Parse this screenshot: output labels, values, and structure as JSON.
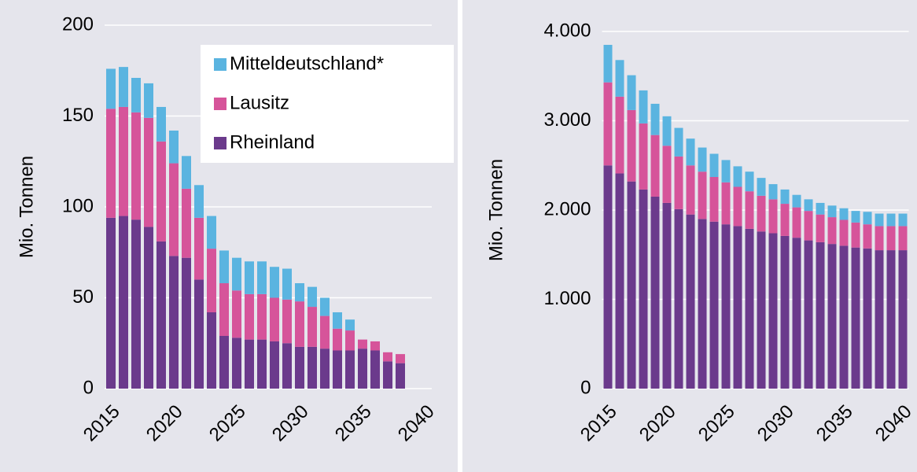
{
  "chart_data": [
    {
      "type": "bar",
      "stacked": true,
      "ylabel": "Mio. Tonnen",
      "x": [
        2015,
        2016,
        2017,
        2018,
        2019,
        2020,
        2021,
        2022,
        2023,
        2024,
        2025,
        2026,
        2027,
        2028,
        2029,
        2030,
        2031,
        2032,
        2033,
        2034,
        2035,
        2036,
        2037,
        2038
      ],
      "series": [
        {
          "name": "Rheinland",
          "color": "#6b3a8c",
          "values": [
            94,
            95,
            93,
            89,
            81,
            73,
            72,
            60,
            42,
            29,
            28,
            27,
            27,
            26,
            25,
            23,
            23,
            22,
            21,
            21,
            22,
            21,
            15,
            14
          ]
        },
        {
          "name": "Lausitz",
          "color": "#d6549a",
          "values": [
            60,
            60,
            59,
            60,
            55,
            51,
            38,
            34,
            35,
            29,
            26,
            25,
            25,
            24,
            24,
            25,
            22,
            18,
            12,
            11,
            5,
            5,
            5,
            5
          ]
        },
        {
          "name": "Mitteldeutschland*",
          "color": "#5ab4e0",
          "values": [
            22,
            22,
            19,
            19,
            19,
            18,
            18,
            18,
            18,
            18,
            18,
            18,
            18,
            17,
            17,
            10,
            11,
            10,
            9,
            6,
            0,
            0,
            0,
            0
          ]
        }
      ],
      "xlim": [
        2014.5,
        2040.5
      ],
      "xticks": [
        2015,
        2020,
        2025,
        2030,
        2035,
        2040
      ],
      "ylim": [
        0,
        200
      ],
      "yticks": [
        0,
        50,
        100,
        150,
        200
      ],
      "grid": true,
      "legend": "upper right"
    },
    {
      "type": "bar",
      "stacked": true,
      "ylabel": "Mio. Tonnen",
      "x": [
        2015,
        2016,
        2017,
        2018,
        2019,
        2020,
        2021,
        2022,
        2023,
        2024,
        2025,
        2026,
        2027,
        2028,
        2029,
        2030,
        2031,
        2032,
        2033,
        2034,
        2035,
        2036,
        2037,
        2038,
        2039,
        2040
      ],
      "series": [
        {
          "color": "#6b3a8c",
          "values": [
            2500,
            2410,
            2320,
            2230,
            2150,
            2080,
            2010,
            1950,
            1900,
            1870,
            1840,
            1820,
            1790,
            1760,
            1740,
            1710,
            1690,
            1660,
            1640,
            1620,
            1600,
            1580,
            1570,
            1550,
            1550,
            1550
          ]
        },
        {
          "color": "#d6549a",
          "values": [
            930,
            860,
            800,
            740,
            690,
            640,
            590,
            550,
            530,
            500,
            470,
            440,
            420,
            400,
            380,
            360,
            340,
            330,
            310,
            300,
            290,
            280,
            270,
            270,
            270,
            270
          ]
        },
        {
          "color": "#5ab4e0",
          "values": [
            420,
            410,
            390,
            370,
            350,
            330,
            320,
            300,
            270,
            260,
            250,
            230,
            220,
            200,
            170,
            160,
            140,
            130,
            130,
            130,
            130,
            130,
            140,
            140,
            140,
            140
          ]
        }
      ],
      "xlim": [
        2014.5,
        2040.5
      ],
      "xticks": [
        2015,
        2020,
        2025,
        2030,
        2035,
        2040
      ],
      "ylim": [
        0,
        4000
      ],
      "yticks": [
        0,
        {
          "value": 1000,
          "label": "1.000"
        },
        {
          "value": 2000,
          "label": "2.000"
        },
        {
          "value": 3000,
          "label": "3.000"
        },
        {
          "value": 4000,
          "label": "4.000"
        }
      ],
      "grid": true
    }
  ]
}
